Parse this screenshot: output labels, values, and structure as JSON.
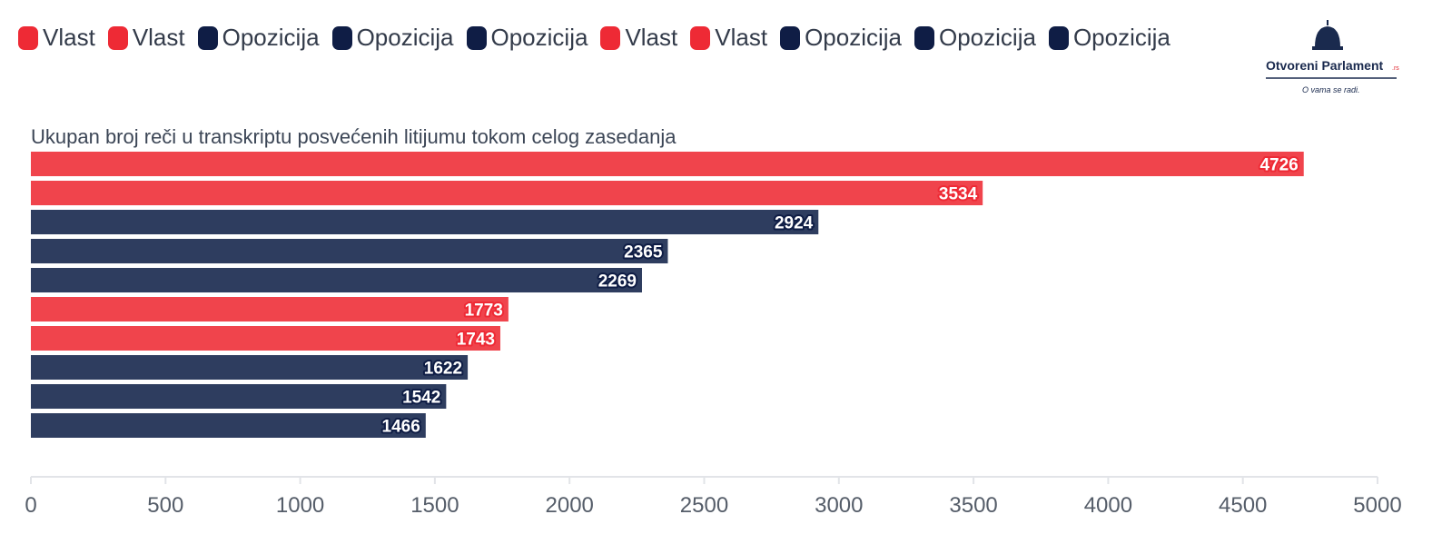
{
  "colors": {
    "vlast": "#f0444c",
    "opozicija": "#2e3d5f",
    "legend_vlast": "#ee2a35",
    "legend_opozicija": "#0f1d45",
    "axis": "#e2e4e8",
    "logo_navy": "#1a2a4e",
    "logo_accent": "#e0262f"
  },
  "logo": {
    "text_main": "Otvoreni Parlament",
    "text_suffix": ".rs",
    "tagline": "O vama se radi."
  },
  "chart_data": {
    "type": "bar",
    "orientation": "horizontal",
    "title": "Ukupan broj reči u transkriptu posvećenih litijumu tokom celog zasedanja",
    "legend": [
      {
        "label": "Vlast",
        "group": "vlast"
      },
      {
        "label": "Vlast",
        "group": "vlast"
      },
      {
        "label": "Opozicija",
        "group": "opozicija"
      },
      {
        "label": "Opozicija",
        "group": "opozicija"
      },
      {
        "label": "Opozicija",
        "group": "opozicija"
      },
      {
        "label": "Vlast",
        "group": "vlast"
      },
      {
        "label": "Vlast",
        "group": "vlast"
      },
      {
        "label": "Opozicija",
        "group": "opozicija"
      },
      {
        "label": "Opozicija",
        "group": "opozicija"
      },
      {
        "label": "Opozicija",
        "group": "opozicija"
      }
    ],
    "values": [
      4726,
      3534,
      2924,
      2365,
      2269,
      1773,
      1743,
      1622,
      1542,
      1466
    ],
    "groups": [
      "vlast",
      "vlast",
      "opozicija",
      "opozicija",
      "opozicija",
      "vlast",
      "vlast",
      "opozicija",
      "opozicija",
      "opozicija"
    ],
    "xlim": [
      0,
      5000
    ],
    "xticks": [
      0,
      500,
      1000,
      1500,
      2000,
      2500,
      3000,
      3500,
      4000,
      4500,
      5000
    ],
    "xlabel": "",
    "ylabel": "",
    "grid": false,
    "legend_position": "top-left"
  }
}
